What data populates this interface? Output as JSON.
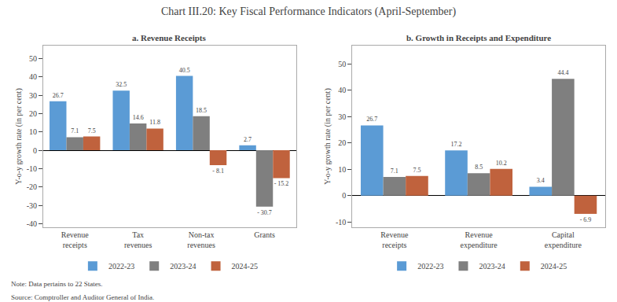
{
  "title": "Chart III.20: Key Fiscal Performance Indicators (April-September)",
  "annotations": [
    "Note: Data pertains to 22 States.",
    "Source: Comptroller and Auditor General of India."
  ],
  "chart_data": [
    {
      "type": "bar",
      "title": "a. Revenue Receipts",
      "categories": [
        "Revenue\nreceipts",
        "Tax\nrevenues",
        "Non-tax\nrevenues",
        "Grants"
      ],
      "series": [
        {
          "name": "2022-23",
          "color": "#5b9bd5",
          "values": [
            26.7,
            32.5,
            40.5,
            2.7
          ],
          "value_labels": [
            "26.7",
            "32.5",
            "40.5",
            "2.7"
          ]
        },
        {
          "name": "2023-24",
          "color": "#7f7f7f",
          "values": [
            7.1,
            14.6,
            18.5,
            -30.7
          ],
          "value_labels": [
            "7.1",
            "14.6",
            "18.5",
            "- 30.7"
          ]
        },
        {
          "name": "2024-25",
          "color": "#c0623d",
          "values": [
            7.5,
            11.8,
            -8.1,
            -15.2
          ],
          "value_labels": [
            "7.5",
            "11.8",
            "- 8.1",
            "- 15.2"
          ]
        }
      ],
      "ylim": [
        -42,
        57
      ],
      "yticks": [
        -40,
        -30,
        -20,
        -10,
        0,
        10,
        20,
        30,
        40,
        50
      ],
      "ylabel": "Y-o-y growth rate (in per cent)",
      "data_labels": true,
      "grid": false,
      "legend": "bottom"
    },
    {
      "type": "bar",
      "title": "b. Growth in Receipts and Expenditure",
      "categories": [
        "Revenue\nreceipts",
        "Revenue\nexpenditure",
        "Capital\nexpenditure"
      ],
      "series": [
        {
          "name": "2022-23",
          "color": "#5b9bd5",
          "values": [
            26.7,
            17.2,
            3.4
          ],
          "value_labels": [
            "26.7",
            "17.2",
            "3.4"
          ]
        },
        {
          "name": "2023-24",
          "color": "#7f7f7f",
          "values": [
            7.1,
            8.5,
            44.4
          ],
          "value_labels": [
            "7.1",
            "8.5",
            "44.4"
          ]
        },
        {
          "name": "2024-25",
          "color": "#c0623d",
          "values": [
            7.5,
            10.2,
            -6.9
          ],
          "value_labels": [
            "7.5",
            "10.2",
            "- 6.9"
          ]
        }
      ],
      "ylim": [
        -12,
        57
      ],
      "yticks": [
        -10,
        0,
        10,
        20,
        30,
        40,
        50
      ],
      "ylabel": "Y-o-y growth rate (in per cent)",
      "data_labels": true,
      "grid": false,
      "legend": "bottom"
    }
  ]
}
